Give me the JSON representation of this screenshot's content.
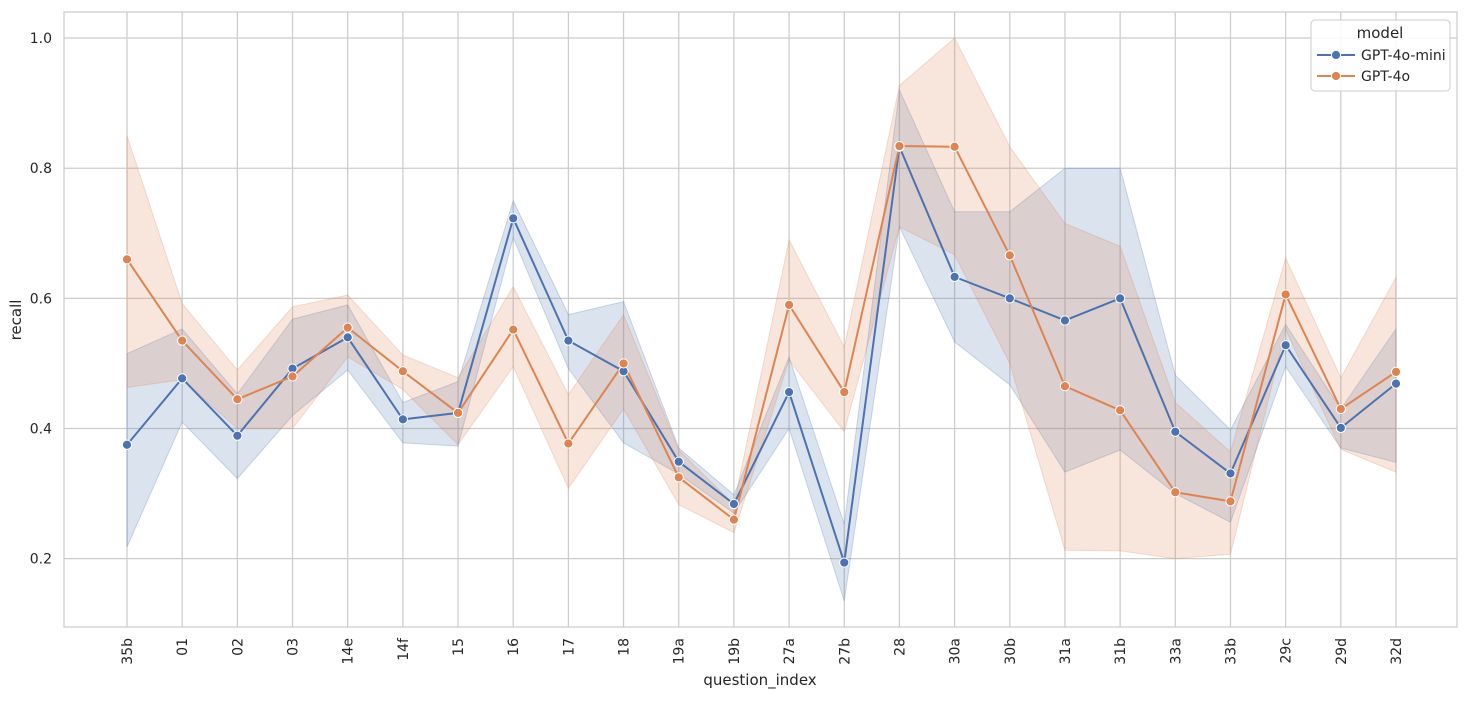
{
  "chart_data": {
    "type": "line",
    "xlabel": "question_index",
    "ylabel": "recall",
    "ylim": [
      0.095,
      1.04
    ],
    "yticks": [
      "0.2",
      "0.4",
      "0.6",
      "0.8",
      "1.0"
    ],
    "ytick_values": [
      0.2,
      0.4,
      0.6,
      0.8,
      1.0
    ],
    "grid": true,
    "legend": {
      "title": "model",
      "placement": "top-right"
    },
    "categories": [
      "35b",
      "01",
      "02",
      "03",
      "14e",
      "14f",
      "15",
      "16",
      "17",
      "18",
      "19a",
      "19b",
      "27a",
      "27b",
      "28",
      "30a",
      "30b",
      "31a",
      "31b",
      "33a",
      "33b",
      "29c",
      "29d",
      "32d"
    ],
    "series": [
      {
        "name": "GPT-4o-mini",
        "color": "#4c72b0",
        "values": [
          0.375,
          0.477,
          0.389,
          0.492,
          0.54,
          0.414,
          0.424,
          0.723,
          0.535,
          0.488,
          0.349,
          0.284,
          0.456,
          0.194,
          0.833,
          0.633,
          0.6,
          0.566,
          0.6,
          0.395,
          0.331,
          0.528,
          0.401,
          0.469
        ],
        "ci_low": [
          0.218,
          0.41,
          0.323,
          0.42,
          0.49,
          0.378,
          0.373,
          0.693,
          0.492,
          0.378,
          0.33,
          0.27,
          0.4,
          0.135,
          0.71,
          0.533,
          0.467,
          0.333,
          0.367,
          0.3,
          0.256,
          0.495,
          0.37,
          0.348
        ],
        "ci_high": [
          0.515,
          0.553,
          0.453,
          0.568,
          0.59,
          0.44,
          0.472,
          0.75,
          0.575,
          0.595,
          0.37,
          0.298,
          0.51,
          0.253,
          0.92,
          0.733,
          0.733,
          0.8,
          0.8,
          0.482,
          0.398,
          0.56,
          0.43,
          0.553
        ]
      },
      {
        "name": "GPT-4o",
        "color": "#dd8452",
        "values": [
          0.66,
          0.535,
          0.445,
          0.48,
          0.555,
          0.488,
          0.424,
          0.552,
          0.377,
          0.5,
          0.325,
          0.26,
          0.59,
          0.456,
          0.834,
          0.833,
          0.666,
          0.465,
          0.428,
          0.302,
          0.288,
          0.606,
          0.43,
          0.487
        ],
        "ci_low": [
          0.463,
          0.475,
          0.4,
          0.4,
          0.51,
          0.46,
          0.375,
          0.495,
          0.308,
          0.43,
          0.283,
          0.24,
          0.505,
          0.395,
          0.71,
          0.667,
          0.5,
          0.213,
          0.212,
          0.2,
          0.207,
          0.552,
          0.368,
          0.333
        ],
        "ci_high": [
          0.85,
          0.592,
          0.49,
          0.587,
          0.605,
          0.513,
          0.478,
          0.618,
          0.452,
          0.575,
          0.367,
          0.283,
          0.69,
          0.525,
          0.927,
          1.0,
          0.833,
          0.715,
          0.68,
          0.44,
          0.364,
          0.662,
          0.478,
          0.632
        ]
      }
    ]
  }
}
